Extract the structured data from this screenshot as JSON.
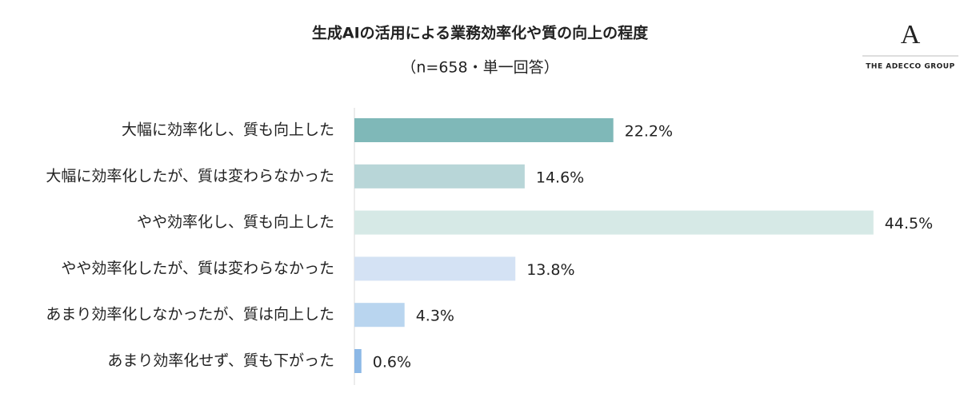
{
  "chart_data": {
    "type": "hbar",
    "title": "生成AIの活用による業務効率化や質の向上の程度",
    "subtitle": "（n=658・単一回答）",
    "categories": [
      "大幅に効率化し、質も向上した",
      "大幅に効率化したが、質は変わらなかった",
      "やや効率化し、質も向上した",
      "やや効率化したが、質は変わらなかった",
      "あまり効率化しなかったが、質は向上した",
      "あまり効率化せず、質も下がった"
    ],
    "values": [
      22.2,
      14.6,
      44.5,
      13.8,
      4.3,
      0.6
    ],
    "value_labels": [
      "22.2%",
      "14.6%",
      "44.5%",
      "13.8%",
      "4.3%",
      "0.6%"
    ],
    "colors": [
      "#7fb8b8",
      "#b8d6d8",
      "#d6e9e6",
      "#d4e2f4",
      "#b9d5ef",
      "#8cb8e6"
    ]
  },
  "logo": {
    "mark": "A",
    "text": "THE ADECCO GROUP"
  }
}
